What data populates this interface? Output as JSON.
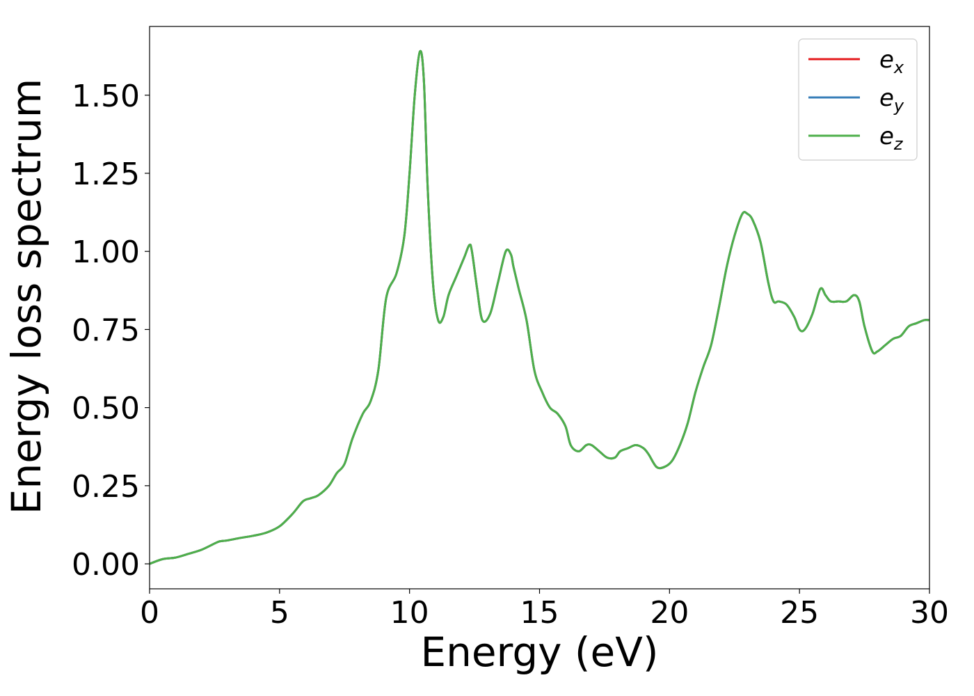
{
  "chart_data": {
    "type": "line",
    "xlabel": "Energy (eV)",
    "ylabel": "Energy loss spectrum",
    "xlim": [
      0,
      30
    ],
    "ylim": [
      -0.08,
      1.72
    ],
    "xticks": [
      0,
      5,
      10,
      15,
      20,
      25,
      30
    ],
    "xtick_labels": [
      "0",
      "5",
      "10",
      "15",
      "20",
      "25",
      "30"
    ],
    "yticks": [
      0.0,
      0.25,
      0.5,
      0.75,
      1.0,
      1.25,
      1.5
    ],
    "ytick_labels": [
      "0.00",
      "0.25",
      "0.50",
      "0.75",
      "1.00",
      "1.25",
      "1.50"
    ],
    "grid": false,
    "legend_position": "top-right",
    "x": [
      0.0,
      0.5,
      1.0,
      1.5,
      2.0,
      2.5,
      2.7,
      3.0,
      3.5,
      4.0,
      4.5,
      5.0,
      5.5,
      5.9,
      6.2,
      6.5,
      6.9,
      7.2,
      7.5,
      7.8,
      8.2,
      8.5,
      8.8,
      9.1,
      9.5,
      9.8,
      10.0,
      10.2,
      10.4,
      10.55,
      10.7,
      10.9,
      11.1,
      11.3,
      11.5,
      11.8,
      12.1,
      12.3,
      12.4,
      12.6,
      12.8,
      13.1,
      13.4,
      13.7,
      13.9,
      14.0,
      14.2,
      14.5,
      14.8,
      15.1,
      15.4,
      15.7,
      16.0,
      16.2,
      16.5,
      16.8,
      17.0,
      17.3,
      17.6,
      17.9,
      18.1,
      18.4,
      18.7,
      19.0,
      19.2,
      19.5,
      19.8,
      20.1,
      20.4,
      20.7,
      21.0,
      21.3,
      21.6,
      21.9,
      22.2,
      22.5,
      22.8,
      23.0,
      23.2,
      23.5,
      23.8,
      24.0,
      24.2,
      24.5,
      24.8,
      25.0,
      25.2,
      25.5,
      25.8,
      26.0,
      26.2,
      26.5,
      26.8,
      27.1,
      27.3,
      27.5,
      27.8,
      28.0,
      28.3,
      28.6,
      28.9,
      29.2,
      29.5,
      29.8,
      30.0
    ],
    "series": [
      {
        "name": "e_x",
        "color": "#e41a1c",
        "values": [
          0.0,
          0.015,
          0.02,
          0.032,
          0.045,
          0.065,
          0.072,
          0.075,
          0.083,
          0.09,
          0.1,
          0.12,
          0.16,
          0.2,
          0.21,
          0.22,
          0.25,
          0.29,
          0.32,
          0.4,
          0.48,
          0.52,
          0.62,
          0.85,
          0.93,
          1.05,
          1.25,
          1.5,
          1.64,
          1.55,
          1.2,
          0.9,
          0.78,
          0.79,
          0.86,
          0.92,
          0.98,
          1.02,
          1.0,
          0.88,
          0.78,
          0.8,
          0.9,
          1.0,
          0.99,
          0.95,
          0.88,
          0.78,
          0.62,
          0.55,
          0.5,
          0.48,
          0.44,
          0.38,
          0.36,
          0.38,
          0.38,
          0.36,
          0.34,
          0.34,
          0.36,
          0.37,
          0.38,
          0.37,
          0.35,
          0.31,
          0.31,
          0.33,
          0.38,
          0.45,
          0.55,
          0.63,
          0.7,
          0.82,
          0.95,
          1.05,
          1.12,
          1.12,
          1.1,
          1.03,
          0.9,
          0.84,
          0.84,
          0.83,
          0.79,
          0.75,
          0.75,
          0.8,
          0.88,
          0.86,
          0.84,
          0.84,
          0.84,
          0.86,
          0.84,
          0.76,
          0.68,
          0.68,
          0.7,
          0.72,
          0.73,
          0.76,
          0.77,
          0.78,
          0.78
        ]
      },
      {
        "name": "e_y",
        "color": "#377eb8",
        "values": [
          0.0,
          0.015,
          0.02,
          0.032,
          0.045,
          0.065,
          0.072,
          0.075,
          0.083,
          0.09,
          0.1,
          0.12,
          0.16,
          0.2,
          0.21,
          0.22,
          0.25,
          0.29,
          0.32,
          0.4,
          0.48,
          0.52,
          0.62,
          0.85,
          0.93,
          1.05,
          1.25,
          1.5,
          1.64,
          1.55,
          1.2,
          0.9,
          0.78,
          0.79,
          0.86,
          0.92,
          0.98,
          1.02,
          1.0,
          0.88,
          0.78,
          0.8,
          0.9,
          1.0,
          0.99,
          0.95,
          0.88,
          0.78,
          0.62,
          0.55,
          0.5,
          0.48,
          0.44,
          0.38,
          0.36,
          0.38,
          0.38,
          0.36,
          0.34,
          0.34,
          0.36,
          0.37,
          0.38,
          0.37,
          0.35,
          0.31,
          0.31,
          0.33,
          0.38,
          0.45,
          0.55,
          0.63,
          0.7,
          0.82,
          0.95,
          1.05,
          1.12,
          1.12,
          1.1,
          1.03,
          0.9,
          0.84,
          0.84,
          0.83,
          0.79,
          0.75,
          0.75,
          0.8,
          0.88,
          0.86,
          0.84,
          0.84,
          0.84,
          0.86,
          0.84,
          0.76,
          0.68,
          0.68,
          0.7,
          0.72,
          0.73,
          0.76,
          0.77,
          0.78,
          0.78
        ]
      },
      {
        "name": "e_z",
        "color": "#4daf4a",
        "values": [
          0.0,
          0.015,
          0.02,
          0.032,
          0.045,
          0.065,
          0.072,
          0.075,
          0.083,
          0.09,
          0.1,
          0.12,
          0.16,
          0.2,
          0.21,
          0.22,
          0.25,
          0.29,
          0.32,
          0.4,
          0.48,
          0.52,
          0.62,
          0.85,
          0.93,
          1.05,
          1.25,
          1.5,
          1.64,
          1.55,
          1.2,
          0.9,
          0.78,
          0.79,
          0.86,
          0.92,
          0.98,
          1.02,
          1.0,
          0.88,
          0.78,
          0.8,
          0.9,
          1.0,
          0.99,
          0.95,
          0.88,
          0.78,
          0.62,
          0.55,
          0.5,
          0.48,
          0.44,
          0.38,
          0.36,
          0.38,
          0.38,
          0.36,
          0.34,
          0.34,
          0.36,
          0.37,
          0.38,
          0.37,
          0.35,
          0.31,
          0.31,
          0.33,
          0.38,
          0.45,
          0.55,
          0.63,
          0.7,
          0.82,
          0.95,
          1.05,
          1.12,
          1.12,
          1.1,
          1.03,
          0.9,
          0.84,
          0.84,
          0.83,
          0.79,
          0.75,
          0.75,
          0.8,
          0.88,
          0.86,
          0.84,
          0.84,
          0.84,
          0.86,
          0.84,
          0.76,
          0.68,
          0.68,
          0.7,
          0.72,
          0.73,
          0.76,
          0.77,
          0.78,
          0.78
        ]
      }
    ],
    "legend": [
      {
        "base": "e",
        "sub": "x",
        "color": "#e41a1c"
      },
      {
        "base": "e",
        "sub": "y",
        "color": "#377eb8"
      },
      {
        "base": "e",
        "sub": "z",
        "color": "#4daf4a"
      }
    ]
  }
}
